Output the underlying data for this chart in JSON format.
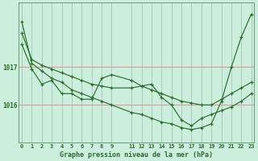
{
  "xlabel": "Graphe pression niveau de la mer (hPa)",
  "background_color": "#cceedd",
  "grid_color_v": "#aaccbb",
  "grid_color_h": "#dd9999",
  "line_color": "#2a6e2a",
  "series": [
    {
      "x": [
        0,
        1,
        2,
        3,
        4,
        5,
        6,
        7,
        8,
        9,
        11,
        12,
        13,
        14,
        15,
        16,
        17,
        18,
        19,
        20,
        21,
        22,
        23
      ],
      "y": [
        1017.9,
        1017.2,
        1017.05,
        1016.95,
        1016.85,
        1016.75,
        1016.65,
        1016.55,
        1016.5,
        1016.45,
        1016.45,
        1016.5,
        1016.4,
        1016.3,
        1016.2,
        1016.1,
        1016.05,
        1016.0,
        1016.0,
        1016.15,
        1016.3,
        1016.45,
        1016.6
      ]
    },
    {
      "x": [
        0,
        1,
        2,
        3,
        4,
        5,
        6,
        7,
        8,
        9,
        11,
        12,
        13,
        14,
        15,
        16,
        17,
        18,
        19,
        20,
        21,
        22,
        23
      ],
      "y": [
        1017.6,
        1016.95,
        1016.55,
        1016.65,
        1016.3,
        1016.3,
        1016.15,
        1016.15,
        1016.7,
        1016.8,
        1016.65,
        1016.5,
        1016.55,
        1016.2,
        1016.0,
        1015.6,
        1015.45,
        1015.65,
        1015.75,
        1015.85,
        1015.95,
        1016.1,
        1016.3
      ]
    },
    {
      "x": [
        0,
        1,
        2,
        3,
        4,
        5,
        6,
        7,
        8,
        9,
        11,
        12,
        13,
        14,
        15,
        16,
        17,
        18,
        19,
        20,
        21,
        22,
        23
      ],
      "y": [
        1018.2,
        1017.1,
        1016.9,
        1016.7,
        1016.6,
        1016.4,
        1016.3,
        1016.2,
        1016.1,
        1016.0,
        1015.8,
        1015.75,
        1015.65,
        1015.55,
        1015.5,
        1015.4,
        1015.35,
        1015.4,
        1015.5,
        1016.1,
        1017.0,
        1017.8,
        1018.4
      ]
    }
  ],
  "xticks_pos": [
    0,
    1,
    2,
    3,
    4,
    5,
    6,
    7,
    8,
    9,
    11,
    12,
    13,
    14,
    15,
    16,
    17,
    18,
    19,
    20,
    21,
    22,
    23
  ],
  "xticklabels": [
    "0",
    "1",
    "2",
    "3",
    "4",
    "5",
    "6",
    "7",
    "8",
    "9",
    "11",
    "12",
    "13",
    "14",
    "15",
    "16",
    "17",
    "18",
    "19",
    "20",
    "21",
    "22",
    "23"
  ],
  "yticks": [
    1016.0,
    1017.0
  ],
  "yticklabels": [
    "1016",
    "1017"
  ],
  "ylim": [
    1015.0,
    1018.7
  ],
  "xlim": [
    -0.3,
    23.3
  ]
}
